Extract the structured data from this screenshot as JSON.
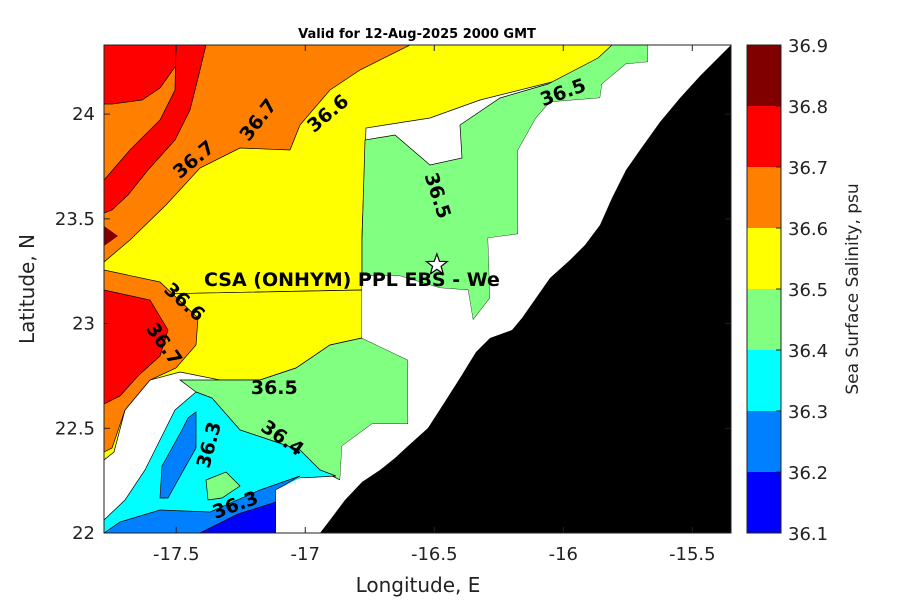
{
  "chart_data": {
    "type": "contour",
    "title": "Valid for 12-Aug-2025 2000 GMT",
    "xlabel": "Longitude, E",
    "ylabel": "Latitude, N",
    "xlim": [
      -17.78,
      -15.35
    ],
    "ylim": [
      22.0,
      24.33
    ],
    "xticks": [
      -17.5,
      -17,
      -16.5,
      -16,
      -15.5
    ],
    "xtick_labels": [
      "-17.5",
      "-17",
      "-16.5",
      "-16",
      "-15.5"
    ],
    "yticks": [
      22,
      22.5,
      23,
      23.5,
      24
    ],
    "ytick_labels": [
      "22",
      "22.5",
      "23",
      "23.5",
      "24"
    ],
    "colorbar": {
      "label": "Sea Surface Salinity, psu",
      "levels": [
        36.1,
        36.2,
        36.3,
        36.4,
        36.5,
        36.6,
        36.7,
        36.8,
        36.9
      ],
      "level_labels": [
        "36.1",
        "36.2",
        "36.3",
        "36.4",
        "36.5",
        "36.6",
        "36.7",
        "36.8",
        "36.9"
      ],
      "colors": [
        "#0000ff",
        "#0080ff",
        "#00ffff",
        "#80ff80",
        "#ffff00",
        "#ff8000",
        "#ff0000",
        "#800000"
      ]
    },
    "land_color": "#000000",
    "nodata_color": "#ffffff",
    "contour_labels": [
      {
        "text": "36.7",
        "lon": -17.43,
        "lat": 23.78,
        "angle": -40
      },
      {
        "text": "36.7",
        "lon": -17.18,
        "lat": 23.97,
        "angle": -52
      },
      {
        "text": "36.6",
        "lon": -16.91,
        "lat": 24.0,
        "angle": -40
      },
      {
        "text": "36.5",
        "lon": -16.49,
        "lat": 23.61,
        "angle": 72
      },
      {
        "text": "36.5",
        "lon": -16.0,
        "lat": 24.1,
        "angle": -20
      },
      {
        "text": "36.6",
        "lon": -17.47,
        "lat": 23.1,
        "angle": 42
      },
      {
        "text": "36.7",
        "lon": -17.55,
        "lat": 22.9,
        "angle": 55
      },
      {
        "text": "36.5",
        "lon": -17.12,
        "lat": 22.69,
        "angle": 0
      },
      {
        "text": "36.4",
        "lon": -17.09,
        "lat": 22.45,
        "angle": 35
      },
      {
        "text": "36.3",
        "lon": -17.37,
        "lat": 22.42,
        "angle": -75
      },
      {
        "text": "36.3",
        "lon": -17.27,
        "lat": 22.13,
        "angle": -20
      }
    ],
    "site": {
      "label": "CSA (ONHYM) PPL EBS  - We",
      "lon": -16.49,
      "lat": 23.28,
      "marker": "star"
    }
  }
}
